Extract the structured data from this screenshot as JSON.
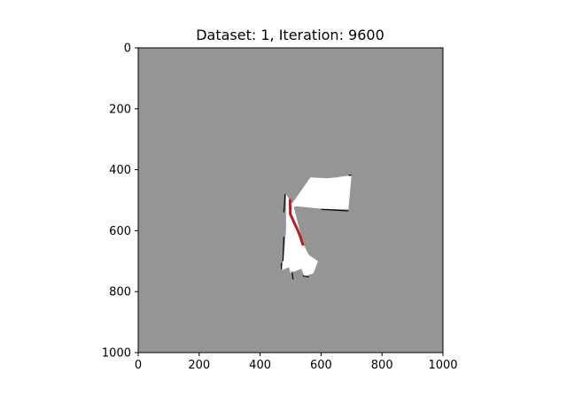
{
  "title": "Dataset: 1, Iteration: 9600",
  "chart_data": {
    "type": "heatmap",
    "title": "Dataset: 1, Iteration: 9600",
    "xlabel": "",
    "ylabel": "",
    "xlim": [
      0,
      1000
    ],
    "ylim": [
      1000,
      0
    ],
    "x_ticks": [
      0,
      200,
      400,
      600,
      800,
      1000
    ],
    "y_ticks": [
      0,
      200,
      400,
      600,
      800,
      1000
    ],
    "x_tick_labels": [
      "0",
      "200",
      "400",
      "600",
      "800",
      "1000"
    ],
    "y_tick_labels": [
      "0",
      "200",
      "400",
      "600",
      "800",
      "1000"
    ],
    "background_color": "#959595",
    "explored_color": "#ffffff",
    "obstacle_color": "#000000",
    "path_color": "#b22222",
    "explored_regions": [
      {
        "name": "upper-region",
        "points": [
          [
            495,
            525
          ],
          [
            565,
            425
          ],
          [
            620,
            428
          ],
          [
            650,
            425
          ],
          [
            700,
            418
          ],
          [
            690,
            530
          ],
          [
            600,
            528
          ],
          [
            520,
            520
          ]
        ]
      },
      {
        "name": "lower-region",
        "points": [
          [
            485,
            480
          ],
          [
            510,
            520
          ],
          [
            530,
            600
          ],
          [
            540,
            640
          ],
          [
            560,
            680
          ],
          [
            590,
            700
          ],
          [
            575,
            740
          ],
          [
            545,
            750
          ],
          [
            535,
            725
          ],
          [
            510,
            735
          ],
          [
            500,
            740
          ],
          [
            495,
            720
          ],
          [
            470,
            730
          ],
          [
            478,
            680
          ],
          [
            485,
            600
          ]
        ]
      }
    ],
    "obstacle_edges": [
      [
        [
          482,
          480
        ],
        [
          478,
          540
        ]
      ],
      [
        [
          478,
          620
        ],
        [
          475,
          700
        ]
      ],
      [
        [
          470,
          705
        ],
        [
          470,
          728
        ]
      ],
      [
        [
          505,
          735
        ],
        [
          508,
          760
        ]
      ],
      [
        [
          540,
          748
        ],
        [
          560,
          752
        ]
      ],
      [
        [
          690,
          418
        ],
        [
          700,
          418
        ]
      ],
      [
        [
          600,
          530
        ],
        [
          690,
          535
        ]
      ]
    ],
    "path": [
      [
        498,
        500
      ],
      [
        499,
        545
      ],
      [
        510,
        570
      ],
      [
        522,
        595
      ],
      [
        532,
        620
      ],
      [
        540,
        645
      ]
    ]
  }
}
